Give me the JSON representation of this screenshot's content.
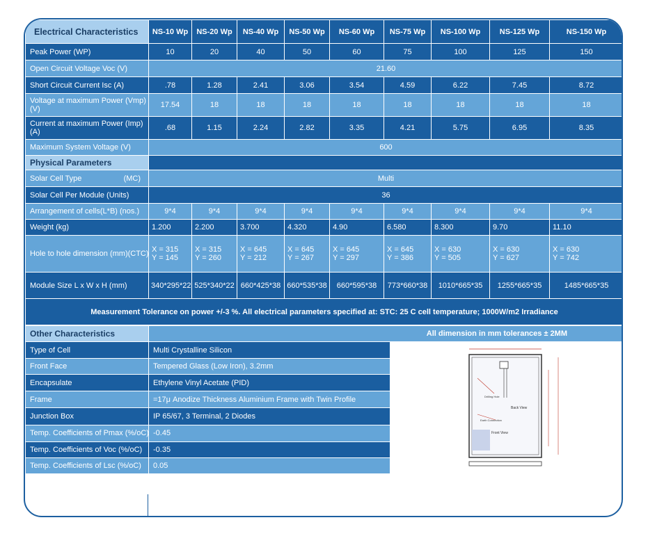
{
  "models": [
    "NS-10 Wp",
    "NS-20 Wp",
    "NS-40 Wp",
    "NS-50 Wp",
    "NS-60 Wp",
    "NS-75 Wp",
    "NS-100 Wp",
    "NS-125 Wp",
    "NS-150 Wp"
  ],
  "electrical": {
    "title": "Electrical Characteristics",
    "peak_power": {
      "label": "Peak Power (WP)",
      "values": [
        "10",
        "20",
        "40",
        "50",
        "60",
        "75",
        "100",
        "125",
        "150"
      ]
    },
    "voc": {
      "label": "Open Circuit Voltage Voc (V)",
      "value": "21.60"
    },
    "isc": {
      "label": "Short Circuit Current Isc (A)",
      "values": [
        ".78",
        "1.28",
        "2.41",
        "3.06",
        "3.54",
        "4.59",
        "6.22",
        "7.45",
        "8.72"
      ]
    },
    "vmp": {
      "label": "Voltage at maximum Power (Vmp) (V)",
      "values": [
        "17.54",
        "18",
        "18",
        "18",
        "18",
        "18",
        "18",
        "18",
        "18"
      ]
    },
    "imp": {
      "label": "Current at maximum Power (Imp) (A)",
      "values": [
        ".68",
        "1.15",
        "2.24",
        "2.82",
        "3.35",
        "4.21",
        "5.75",
        "6.95",
        "8.35"
      ]
    },
    "max_voltage": {
      "label": "Maximum System Voltage (V)",
      "value": "600"
    }
  },
  "physical": {
    "title": "Physical Parameters",
    "cell_type": {
      "label": "Solar Cell Type",
      "suffix": "(MC)",
      "value": "Multi"
    },
    "cells_per_module": {
      "label": "Solar Cell Per Module (Units)",
      "value": "36"
    },
    "arrangement": {
      "label": "Arrangement of cells(L*B)  (nos.)",
      "values": [
        "9*4",
        "9*4",
        "9*4",
        "9*4",
        "9*4",
        "9*4",
        "9*4",
        "9*4",
        "9*4"
      ]
    },
    "weight": {
      "label": "Weight (kg)",
      "values": [
        "1.200",
        "2.200",
        "3.700",
        "4.320",
        "4.90",
        "6.580",
        "8.300",
        "9.70",
        "11.10"
      ]
    },
    "hole": {
      "label": "Hole to hole dimension (mm)(CTC)",
      "x": [
        "X = 315",
        "X = 315",
        "X = 645",
        "X = 645",
        "X = 645",
        "X = 645",
        "X = 630",
        "X = 630",
        "X = 630"
      ],
      "y": [
        "Y = 145",
        "Y = 260",
        "Y = 212",
        "Y = 267",
        "Y = 297",
        "Y = 386",
        "Y = 505",
        "Y = 627",
        "Y = 742"
      ]
    },
    "module_size": {
      "label": "Module Size L x W x H (mm)",
      "values": [
        "340*295*22",
        "525*340*22",
        "660*425*38",
        "660*535*38",
        "660*595*38",
        "773*660*38",
        "1010*665*35",
        "1255*665*35",
        "1485*665*35"
      ]
    }
  },
  "note": "Measurement Tolerance on power +/-3 %. All electrical parameters specified at: STC: 25 C cell temperature; 1000W/m2 Irradiance",
  "other": {
    "title": "Other Characteristics",
    "dimension_note": "All dimension in mm tolerances ± 2MM",
    "rows": [
      {
        "label": "Type of Cell",
        "value": "Multi Crystalline Silicon"
      },
      {
        "label": "Front Face",
        "value": "Tempered Glass (Low Iron), 3.2mm"
      },
      {
        "label": "Encapsulate",
        "value": "Ethylene Vinyl Acetate (PID)"
      },
      {
        "label": "Frame",
        "value": "=17μ Anodize Thickness Aluminium Frame with Twin Profile"
      },
      {
        "label": "Junction Box",
        "value": "IP 65/67, 3 Terminal, 2 Diodes"
      },
      {
        "label": "Temp. Coefficients of Pmax (%/oC)",
        "value": "-0.45"
      },
      {
        "label": "Temp. Coefficients of Voc (%/oC)",
        "value": "-0.35"
      },
      {
        "label": "Temp. Coefficients of Lsc (%/oC)",
        "value": "0.05"
      }
    ]
  },
  "drawing": {
    "back_view": "Back View",
    "front_view": "Front View",
    "hole_label": "Drilling Hole",
    "connection_label": "Earth Connection"
  }
}
